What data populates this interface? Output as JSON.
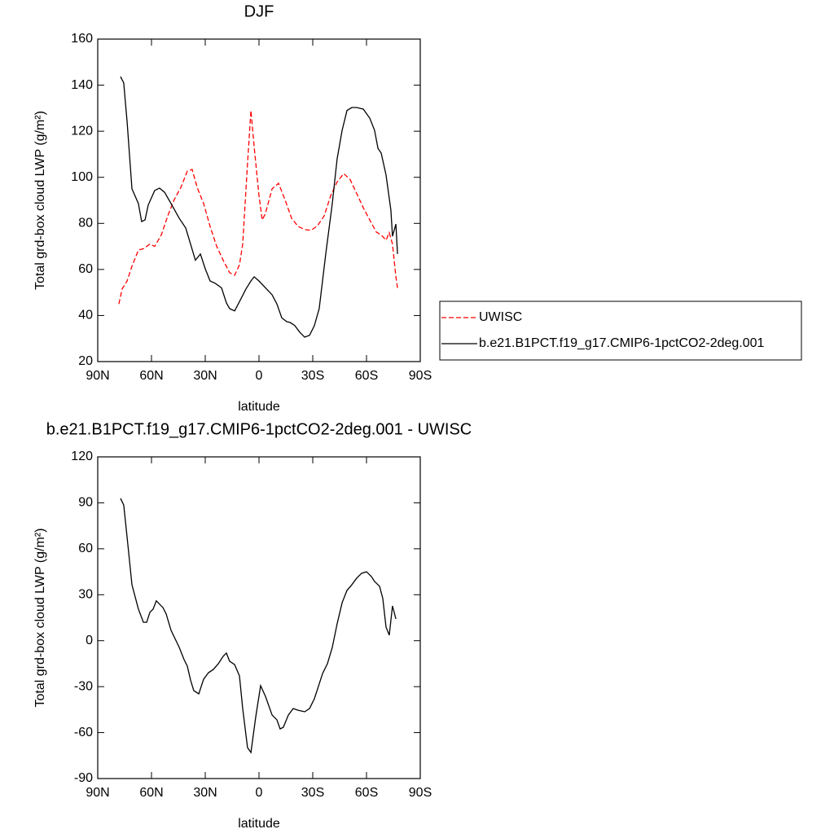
{
  "chart_data": [
    {
      "type": "line",
      "title": "DJF",
      "x_label": "latitude",
      "y_label": "Total grd-box cloud LWP (g/m²)",
      "xlim": [
        90,
        -90
      ],
      "xticks": [
        {
          "value": 90,
          "label": "90N"
        },
        {
          "value": 60,
          "label": "60N"
        },
        {
          "value": 30,
          "label": "30N"
        },
        0,
        {
          "value": -30,
          "label": "30S"
        },
        {
          "value": -60,
          "label": "60S"
        },
        {
          "value": -90,
          "label": "90S"
        }
      ],
      "ylim": [
        20,
        160
      ],
      "yticks": [
        20,
        40,
        60,
        80,
        100,
        120,
        140,
        160
      ],
      "legend": "right",
      "series": [
        {
          "name": "UWISC",
          "color": "#ff0000",
          "dash": true,
          "x": [
            78.2,
            76.4,
            73.6,
            70.9,
            67.3,
            64.5,
            60.9,
            58.2,
            54.5,
            50.9,
            47.3,
            43.6,
            40,
            37.3,
            34.5,
            30.9,
            27.3,
            23.6,
            20,
            16.4,
            13.6,
            10.9,
            9.1,
            6.4,
            4.5,
            2.7,
            0,
            -1.8,
            -3.6,
            -7.3,
            -10.9,
            -14.5,
            -18.2,
            -21.8,
            -25.5,
            -29.1,
            -32.7,
            -36.4,
            -40,
            -43.6,
            -47.3,
            -50.9,
            -54.5,
            -58.2,
            -61.8,
            -65.5,
            -68.2,
            -70.9,
            -72.7,
            -74.5,
            -76.4,
            -77.3
          ],
          "values": [
            45,
            51.5,
            55,
            61.4,
            68.4,
            69,
            71,
            70,
            75,
            83.3,
            90.3,
            95.6,
            102.7,
            103.4,
            95.6,
            88.6,
            78.7,
            70,
            64,
            58.6,
            57.5,
            62,
            71,
            106,
            129,
            113.3,
            92,
            81.5,
            84.3,
            95,
            97.4,
            90.3,
            82.2,
            78.7,
            77.3,
            77,
            79,
            83.3,
            92,
            98,
            101.6,
            99,
            93,
            86.8,
            81.5,
            76.2,
            75,
            72.7,
            76,
            71,
            56.8,
            52
          ]
        },
        {
          "name": "b.e21.B1PCT.f19_g17.CMIP6-1pctCO2-2deg.001",
          "color": "#000000",
          "dash": false,
          "x": [
            77.3,
            75.5,
            73.6,
            70.9,
            67.3,
            65.5,
            63.6,
            61.8,
            58.2,
            55.5,
            52.7,
            49.1,
            44.5,
            40.9,
            38.2,
            35.5,
            32.7,
            30,
            27.3,
            24.5,
            20.9,
            18.2,
            16.4,
            13.6,
            10.9,
            7.3,
            4.5,
            2.7,
            0,
            -3.6,
            -7.3,
            -10,
            -12.7,
            -15.5,
            -17.3,
            -20,
            -22.7,
            -25.5,
            -28.2,
            -30.9,
            -33.6,
            -37.3,
            -40.9,
            -43.6,
            -46.4,
            -49.1,
            -51.8,
            -54.5,
            -58.2,
            -61.8,
            -64.5,
            -66.4,
            -68.2,
            -70.9,
            -73.6,
            -74.5,
            -76.4,
            -77.3
          ],
          "values": [
            143.7,
            141,
            124,
            95,
            88.6,
            80.8,
            81.5,
            88,
            94.3,
            95.3,
            93.5,
            88.6,
            82.2,
            78,
            71,
            64,
            66.7,
            60.3,
            55,
            54,
            52,
            45.5,
            43,
            42,
            46,
            51.5,
            55,
            56.8,
            55,
            52,
            49,
            45,
            39,
            37.3,
            37,
            35.6,
            32.8,
            30.6,
            31.4,
            35.6,
            43,
            67,
            88.6,
            108,
            120.4,
            129,
            130.3,
            130.3,
            129.6,
            125.7,
            120.4,
            112.6,
            110.5,
            101,
            85.8,
            74.4,
            79.7,
            66.7
          ]
        }
      ]
    },
    {
      "type": "line",
      "title": "b.e21.B1PCT.f19_g17.CMIP6-1pctCO2-2deg.001 - UWISC",
      "x_label": "latitude",
      "y_label": "Total grd-box cloud LWP (g/m²)",
      "xlim": [
        90,
        -90
      ],
      "xticks": [
        {
          "value": 90,
          "label": "90N"
        },
        {
          "value": 60,
          "label": "60N"
        },
        {
          "value": 30,
          "label": "30N"
        },
        0,
        {
          "value": -30,
          "label": "30S"
        },
        {
          "value": -60,
          "label": "60S"
        },
        {
          "value": -90,
          "label": "90S"
        }
      ],
      "ylim": [
        -90,
        120
      ],
      "yticks": [
        -90,
        -60,
        -30,
        0,
        30,
        60,
        90,
        120
      ],
      "series": [
        {
          "color": "#000000",
          "dash": false,
          "x": [
            77.3,
            75.5,
            73.6,
            70.9,
            67.3,
            64.5,
            62.7,
            60.9,
            59.1,
            57.3,
            53.6,
            51.8,
            49.1,
            44.5,
            41.8,
            40,
            38.2,
            36.4,
            33.6,
            30.9,
            28.2,
            25.5,
            22.7,
            20,
            18.2,
            16.4,
            13.6,
            10.9,
            9.1,
            6.4,
            4.5,
            1.8,
            -0.9,
            -3.6,
            -7.3,
            -10,
            -11.8,
            -13.6,
            -16.4,
            -19.1,
            -21.8,
            -25.5,
            -28.2,
            -30.9,
            -32.7,
            -35.5,
            -38.2,
            -40.9,
            -43.6,
            -46.4,
            -49.1,
            -51.8,
            -54.5,
            -57.3,
            -60,
            -62.7,
            -64.5,
            -67.3,
            -69.1,
            -70.9,
            -72.7,
            -74.5,
            -76.4
          ],
          "values": [
            92.9,
            88.6,
            67.4,
            36.5,
            20.6,
            12,
            12,
            18.5,
            20.6,
            26,
            21.6,
            17.4,
            6.8,
            -4.4,
            -12.4,
            -16.6,
            -25.7,
            -32.6,
            -34.7,
            -25.1,
            -20.9,
            -18.8,
            -15,
            -10.2,
            -8.1,
            -13.4,
            -15.6,
            -23,
            -44.3,
            -69.8,
            -73,
            -49.6,
            -29.4,
            -36.3,
            -48.5,
            -51.7,
            -57.6,
            -56.5,
            -48.5,
            -44.3,
            -45.4,
            -46.4,
            -44.3,
            -37.9,
            -31.5,
            -21.4,
            -15,
            -4.4,
            11,
            24.8,
            32.8,
            36.5,
            40.8,
            44,
            45,
            41.9,
            38.7,
            35.5,
            27.5,
            8.9,
            3.6,
            22.7,
            14.2
          ]
        }
      ]
    }
  ]
}
